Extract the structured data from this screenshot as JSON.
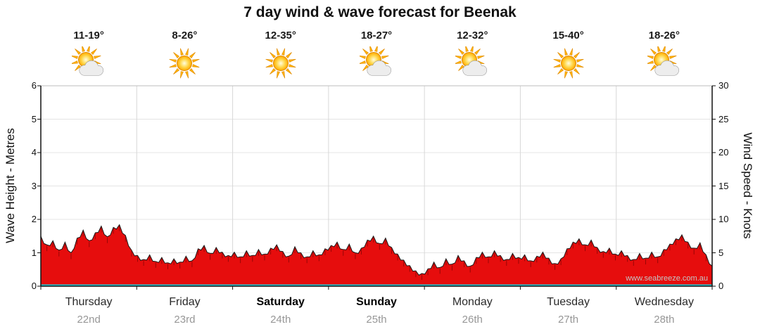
{
  "title": "7 day wind & wave forecast for Beenak",
  "watermark": "www.seabreeze.com.au",
  "chart_data": {
    "type": "area",
    "title": "7 day wind & wave forecast for Beenak",
    "ylabel_left": "Wave Height - Metres",
    "ylabel_right": "Wind Speed - Knots",
    "ylim_left": [
      0,
      6
    ],
    "ylim_right": [
      0,
      30
    ],
    "left_ticks": [
      "0",
      "1",
      "2",
      "3",
      "4",
      "5",
      "6"
    ],
    "right_ticks": [
      "0",
      "5",
      "10",
      "15",
      "20",
      "25",
      "30"
    ],
    "grid": true,
    "legend_position": "none",
    "series_color": "#e60d0d",
    "series_outline": "#1a1a1a",
    "baseline_color": "#1fc6d2",
    "days": [
      {
        "name": "Thursday",
        "date": "22nd",
        "temp": "11-19°",
        "icon": "sun-cloud",
        "emphasis": false
      },
      {
        "name": "Friday",
        "date": "23rd",
        "temp": "8-26°",
        "icon": "sun",
        "emphasis": false
      },
      {
        "name": "Saturday",
        "date": "24th",
        "temp": "12-35°",
        "icon": "sun",
        "emphasis": true
      },
      {
        "name": "Sunday",
        "date": "25th",
        "temp": "18-27°",
        "icon": "sun-cloud",
        "emphasis": true
      },
      {
        "name": "Monday",
        "date": "26th",
        "temp": "12-32°",
        "icon": "sun-cloud",
        "emphasis": false
      },
      {
        "name": "Tuesday",
        "date": "27th",
        "temp": "15-40°",
        "icon": "sun",
        "emphasis": false
      },
      {
        "name": "Wednesday",
        "date": "28th",
        "temp": "18-26°",
        "icon": "sun-cloud",
        "emphasis": false
      }
    ],
    "series": [
      {
        "name": "Wind speed (knots, right axis)",
        "axis": "right",
        "values": [
          7.5,
          6.2,
          6.8,
          5.4,
          6.6,
          5.0,
          7.2,
          8.4,
          6.8,
          8.0,
          9.0,
          7.4,
          8.8,
          9.2,
          7.6,
          5.4,
          4.6,
          4.0,
          4.7,
          3.7,
          4.3,
          3.5,
          4.1,
          3.6,
          4.5,
          3.8,
          5.6,
          6.1,
          4.9,
          5.8,
          5.1,
          4.6,
          5.1,
          4.4,
          5.3,
          4.6,
          5.5,
          4.8,
          5.7,
          6.2,
          5.2,
          4.5,
          5.9,
          5.0,
          4.4,
          5.3,
          4.7,
          5.6,
          6.1,
          6.6,
          5.5,
          6.3,
          5.0,
          5.7,
          6.9,
          7.5,
          6.4,
          7.2,
          5.8,
          4.8,
          3.9,
          3.1,
          2.3,
          1.9,
          2.6,
          3.6,
          2.8,
          4.1,
          3.3,
          4.6,
          3.8,
          3.0,
          4.3,
          5.1,
          4.4,
          5.3,
          4.6,
          4.0,
          4.9,
          4.3,
          4.7,
          3.8,
          4.5,
          5.1,
          4.2,
          3.4,
          4.1,
          5.6,
          6.6,
          7.1,
          6.2,
          6.9,
          5.8,
          5.2,
          5.7,
          4.8,
          5.3,
          4.6,
          4.0,
          4.9,
          4.2,
          5.1,
          4.4,
          5.5,
          6.3,
          7.1,
          7.7,
          6.6,
          5.7,
          6.5,
          4.7,
          3.0
        ]
      },
      {
        "name": "Swell (metres, left axis)",
        "axis": "left",
        "constant_value": 0
      }
    ]
  }
}
